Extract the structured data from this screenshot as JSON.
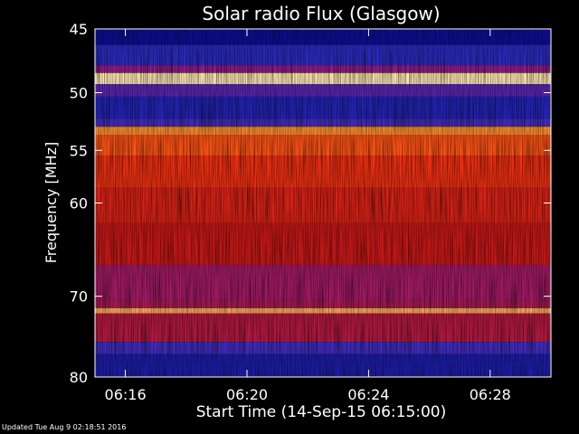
{
  "chart_data": {
    "type": "heatmap",
    "title": "Solar radio Flux (Glasgow)",
    "ylabel": "Frequency [MHz]",
    "xlabel": "Start Time (14-Sep-15 06:15:00)",
    "y_scale": "log",
    "ylim": [
      80,
      45
    ],
    "y_ticks": [
      45,
      50,
      55,
      60,
      70,
      80
    ],
    "x_ticks": [
      "06:16",
      "06:20",
      "06:24",
      "06:28"
    ],
    "xlim": [
      "06:15:00",
      "06:30:00"
    ],
    "colormap": [
      "#000080",
      "#3030c8",
      "#8a1c9a",
      "#c81818",
      "#ff3a10",
      "#ff8a20",
      "#ffe8b0"
    ],
    "bands": [
      {
        "from_mhz": 45.0,
        "to_mhz": 46.2,
        "level": 0.05
      },
      {
        "from_mhz": 46.2,
        "to_mhz": 47.8,
        "level": 0.15
      },
      {
        "from_mhz": 47.8,
        "to_mhz": 48.4,
        "level": 0.35
      },
      {
        "from_mhz": 48.4,
        "to_mhz": 49.3,
        "level": 1.0
      },
      {
        "from_mhz": 49.3,
        "to_mhz": 50.3,
        "level": 0.25
      },
      {
        "from_mhz": 50.3,
        "to_mhz": 52.2,
        "level": 0.12
      },
      {
        "from_mhz": 52.2,
        "to_mhz": 52.9,
        "level": 0.2
      },
      {
        "from_mhz": 52.9,
        "to_mhz": 53.6,
        "level": 0.85
      },
      {
        "from_mhz": 53.6,
        "to_mhz": 55.5,
        "level": 0.72
      },
      {
        "from_mhz": 55.5,
        "to_mhz": 58.5,
        "level": 0.62
      },
      {
        "from_mhz": 58.5,
        "to_mhz": 62.0,
        "level": 0.55
      },
      {
        "from_mhz": 62.0,
        "to_mhz": 66.5,
        "level": 0.5
      },
      {
        "from_mhz": 66.5,
        "to_mhz": 70.5,
        "level": 0.4
      },
      {
        "from_mhz": 70.5,
        "to_mhz": 71.4,
        "level": 0.42
      },
      {
        "from_mhz": 71.4,
        "to_mhz": 72.0,
        "level": 0.9
      },
      {
        "from_mhz": 72.0,
        "to_mhz": 75.5,
        "level": 0.45
      },
      {
        "from_mhz": 75.5,
        "to_mhz": 77.0,
        "level": 0.2
      },
      {
        "from_mhz": 77.0,
        "to_mhz": 80.0,
        "level": 0.1
      }
    ]
  },
  "footer": "Updated Tue Aug  9 02:18:51 2016"
}
